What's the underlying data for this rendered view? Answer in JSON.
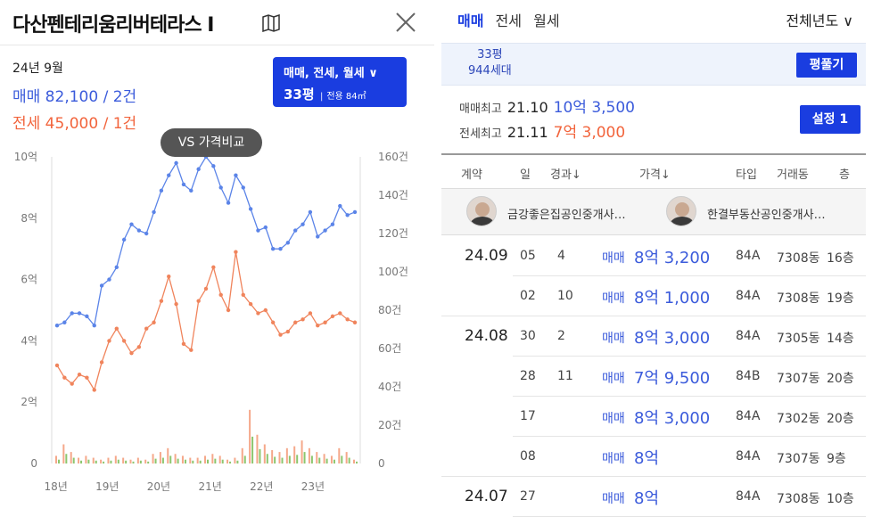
{
  "left": {
    "title": "다산펜테리움리버테라스 I",
    "date": "24년 9월",
    "sale_summary": "매매 82,100 / 2건",
    "rent_summary": "전세 45,000 / 1건",
    "type_button": {
      "line1": "매매, 전세, 월세 ∨",
      "size": "33평",
      "sep": "|",
      "area": "전용 84㎡"
    },
    "vs_button": "VS 가격비교"
  },
  "right": {
    "tabs": [
      "매매",
      "전세",
      "월세"
    ],
    "active_tab": 0,
    "year_select": "전체년도 ∨",
    "info": {
      "pyeong": "33평",
      "households": "944세대",
      "compare_button": "평풀기"
    },
    "max_sale": {
      "label": "매매최고",
      "ym": "21.10",
      "price": "10억 3,500"
    },
    "max_rent": {
      "label": "전세최고",
      "ym": "21.11",
      "price": "7억 3,000"
    },
    "settings_button": "설정 1",
    "headers": [
      "계약",
      "일",
      "경과↓",
      "가격↓",
      "타입",
      "거래동",
      "층"
    ],
    "agents": [
      "금강좋은집공인중개사…",
      "한결부동산공인중개사…"
    ],
    "rows": [
      {
        "ym": "24.09",
        "day": "05",
        "gap": "4",
        "kind": "매매",
        "price": "8억 3,200",
        "type": "84A",
        "dong": "7308동",
        "floor": "16층"
      },
      {
        "ym": "",
        "day": "02",
        "gap": "10",
        "kind": "매매",
        "price": "8억 1,000",
        "type": "84A",
        "dong": "7308동",
        "floor": "19층"
      },
      {
        "ym": "24.08",
        "day": "30",
        "gap": "2",
        "kind": "매매",
        "price": "8억 3,000",
        "type": "84A",
        "dong": "7305동",
        "floor": "14층"
      },
      {
        "ym": "",
        "day": "28",
        "gap": "11",
        "kind": "매매",
        "price": "7억 9,500",
        "type": "84B",
        "dong": "7307동",
        "floor": "20층"
      },
      {
        "ym": "",
        "day": "17",
        "gap": "",
        "kind": "매매",
        "price": "8억 3,000",
        "type": "84A",
        "dong": "7302동",
        "floor": "20층"
      },
      {
        "ym": "",
        "day": "08",
        "gap": "",
        "kind": "매매",
        "price": "8억",
        "type": "84A",
        "dong": "7307동",
        "floor": "9층"
      },
      {
        "ym": "24.07",
        "day": "27",
        "gap": "",
        "kind": "매매",
        "price": "8억",
        "type": "84A",
        "dong": "7308동",
        "floor": "10층"
      }
    ]
  },
  "chart_data": {
    "type": "line",
    "x": [
      "18.01",
      "18.03",
      "18.05",
      "18.07",
      "18.09",
      "18.11",
      "19.01",
      "19.03",
      "19.05",
      "19.07",
      "19.09",
      "19.11",
      "20.01",
      "20.03",
      "20.05",
      "20.07",
      "20.09",
      "20.11",
      "21.01",
      "21.03",
      "21.05",
      "21.07",
      "21.09",
      "21.11",
      "22.01",
      "22.03",
      "22.05",
      "22.07",
      "22.09",
      "22.11",
      "23.01",
      "23.03",
      "23.05",
      "23.07",
      "23.09",
      "23.11",
      "24.01",
      "24.03",
      "24.05",
      "24.07",
      "24.09"
    ],
    "xticks": [
      "18년",
      "19년",
      "20년",
      "21년",
      "22년",
      "23년"
    ],
    "ylim_left": [
      0,
      10
    ],
    "yticks_left": [
      "0",
      "2억",
      "4억",
      "6억",
      "8억",
      "10억"
    ],
    "ylim_right": [
      0,
      160
    ],
    "yticks_right": [
      "0",
      "20건",
      "40건",
      "60건",
      "80건",
      "100건",
      "120건",
      "140건",
      "160건"
    ],
    "series": [
      {
        "name": "매매",
        "color": "#5b84e8",
        "values": [
          4.5,
          4.6,
          4.9,
          4.9,
          4.8,
          4.5,
          5.8,
          6.0,
          6.4,
          7.3,
          7.8,
          7.6,
          7.5,
          8.2,
          8.9,
          9.4,
          9.8,
          9.1,
          8.9,
          9.6,
          10.0,
          9.7,
          9.0,
          8.5,
          9.4,
          9.0,
          8.3,
          7.6,
          7.7,
          7.0,
          7.0,
          7.2,
          7.6,
          7.8,
          8.2,
          7.4,
          7.6,
          7.8,
          8.4,
          8.1,
          8.2
        ]
      },
      {
        "name": "전세",
        "color": "#f0845c",
        "values": [
          3.2,
          2.8,
          2.6,
          2.9,
          2.8,
          2.4,
          3.3,
          4.0,
          4.4,
          4.0,
          3.6,
          3.8,
          4.4,
          4.6,
          5.3,
          6.1,
          5.2,
          3.9,
          3.7,
          5.3,
          5.7,
          6.4,
          5.5,
          5.0,
          6.9,
          5.5,
          5.2,
          4.9,
          5.0,
          4.6,
          4.2,
          4.3,
          4.6,
          4.7,
          4.9,
          4.5,
          4.6,
          4.8,
          4.9,
          4.7,
          4.6
        ]
      }
    ],
    "volume": [
      4,
      10,
      6,
      3,
      4,
      3,
      2,
      3,
      4,
      3,
      2,
      3,
      2,
      5,
      6,
      8,
      5,
      4,
      3,
      3,
      4,
      5,
      4,
      2,
      3,
      8,
      28,
      15,
      10,
      7,
      6,
      8,
      9,
      12,
      8,
      6,
      5,
      4,
      8,
      6,
      2
    ]
  }
}
